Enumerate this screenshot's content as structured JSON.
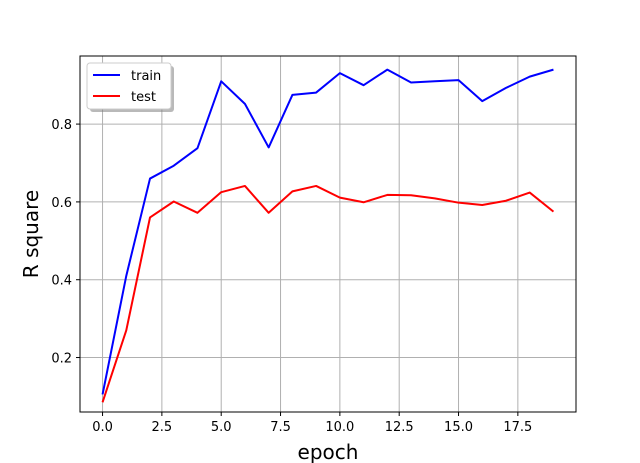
{
  "chart_data": {
    "type": "line",
    "title": "",
    "xlabel": "epoch",
    "ylabel": "R square",
    "xlim": [
      -0.95,
      19.95
    ],
    "ylim": [
      0.06,
      0.975
    ],
    "xticks": [
      0.0,
      2.5,
      5.0,
      7.5,
      10.0,
      12.5,
      15.0,
      17.5
    ],
    "xtick_labels": [
      "0.0",
      "2.5",
      "5.0",
      "7.5",
      "10.0",
      "12.5",
      "15.0",
      "17.5"
    ],
    "yticks": [
      0.2,
      0.4,
      0.6,
      0.8
    ],
    "ytick_labels": [
      "0.2",
      "0.4",
      "0.6",
      "0.8"
    ],
    "grid": true,
    "legend_position": "top-left",
    "x": [
      0,
      1,
      2,
      3,
      4,
      5,
      6,
      7,
      8,
      9,
      10,
      11,
      12,
      13,
      14,
      15,
      16,
      17,
      18,
      19
    ],
    "series": [
      {
        "name": "train",
        "color": "#0000ff",
        "values": [
          0.105,
          0.41,
          0.66,
          0.693,
          0.738,
          0.91,
          0.852,
          0.74,
          0.875,
          0.881,
          0.931,
          0.9,
          0.94,
          0.907,
          0.91,
          0.913,
          0.859,
          0.893,
          0.922,
          0.94
        ]
      },
      {
        "name": "test",
        "color": "#ff0000",
        "values": [
          0.085,
          0.27,
          0.56,
          0.601,
          0.572,
          0.625,
          0.641,
          0.572,
          0.627,
          0.641,
          0.611,
          0.599,
          0.618,
          0.617,
          0.609,
          0.598,
          0.592,
          0.603,
          0.624,
          0.575
        ]
      }
    ]
  }
}
